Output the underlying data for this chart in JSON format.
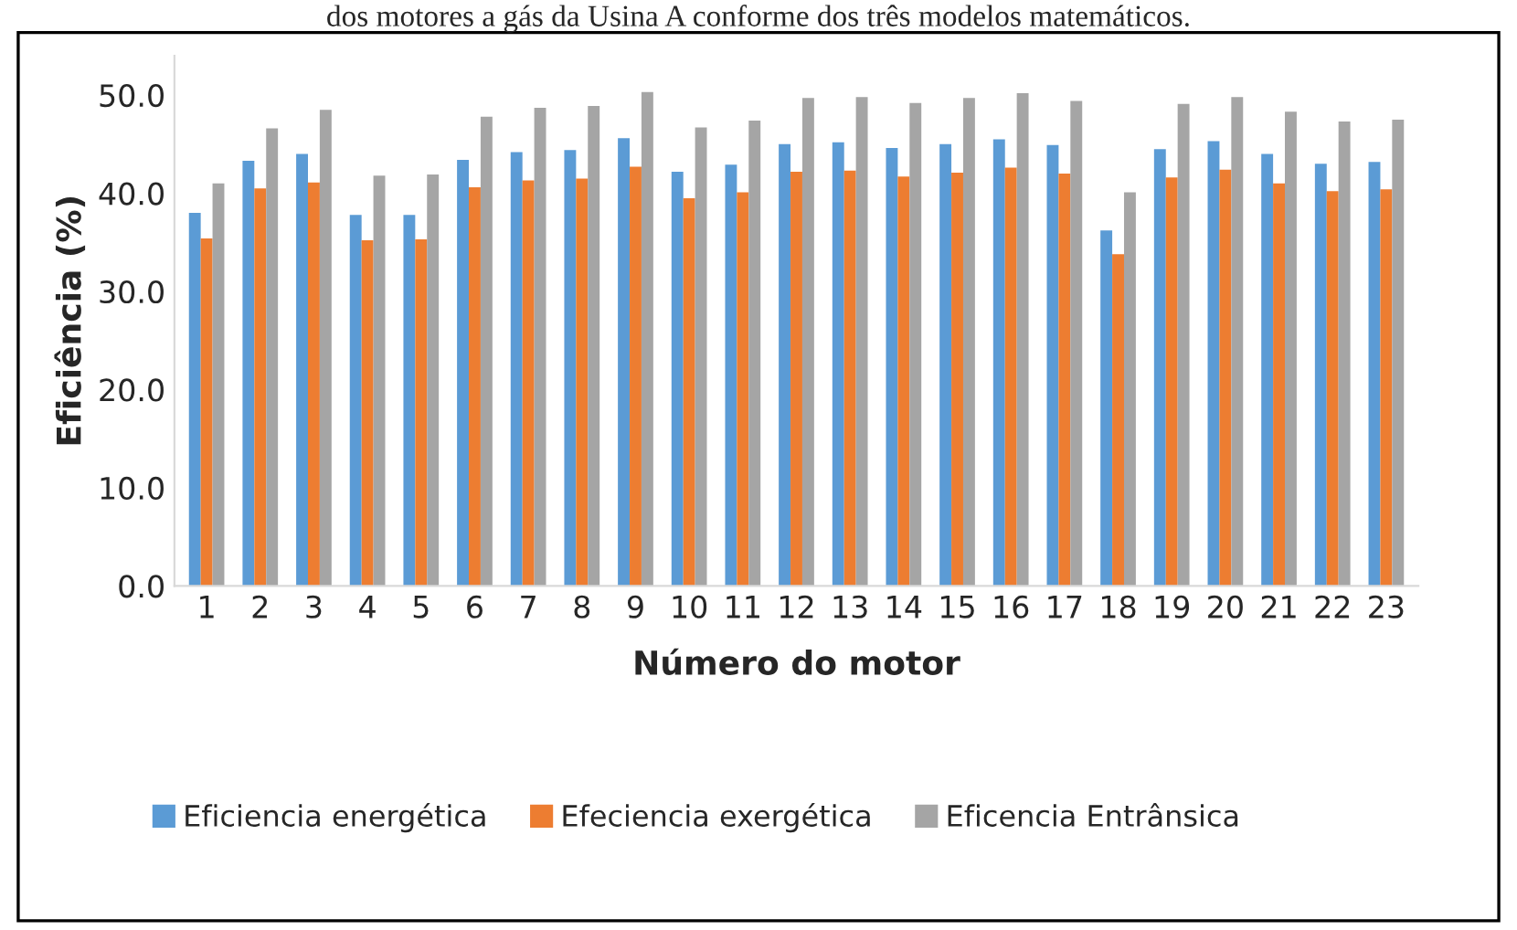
{
  "chart_data": {
    "type": "bar",
    "xlabel": "Número do motor",
    "ylabel": "Eficiência (%)",
    "annotations": [
      "dos motores a gás da Usina A conforme dos três modelos matemáticos."
    ],
    "categories": [
      "1",
      "2",
      "3",
      "4",
      "5",
      "6",
      "7",
      "8",
      "9",
      "10",
      "11",
      "12",
      "13",
      "14",
      "15",
      "16",
      "17",
      "18",
      "19",
      "20",
      "21",
      "22",
      "23"
    ],
    "series": [
      {
        "name": "Eficiencia energética",
        "color": "#5b9bd5",
        "values": [
          38.0,
          43.3,
          44.0,
          37.8,
          37.8,
          43.4,
          44.2,
          44.4,
          45.6,
          42.2,
          42.9,
          45.0,
          45.2,
          44.6,
          45.0,
          45.5,
          44.9,
          36.2,
          44.5,
          45.3,
          44.0,
          43.0,
          43.2
        ]
      },
      {
        "name": "Efeciencia exergética",
        "color": "#ed7d31",
        "values": [
          35.4,
          40.5,
          41.1,
          35.2,
          35.3,
          40.6,
          41.3,
          41.5,
          42.7,
          39.5,
          40.1,
          42.2,
          42.3,
          41.7,
          42.1,
          42.6,
          42.0,
          33.8,
          41.6,
          42.4,
          41.0,
          40.2,
          40.4
        ]
      },
      {
        "name": "Eficencia Entrânsica",
        "color": "#a5a5a5",
        "values": [
          41.0,
          46.6,
          48.5,
          41.8,
          41.9,
          47.8,
          48.7,
          48.9,
          50.3,
          46.7,
          47.4,
          49.7,
          49.8,
          49.2,
          49.7,
          50.2,
          49.4,
          40.1,
          49.1,
          49.8,
          48.3,
          47.3,
          47.5
        ]
      }
    ],
    "ylim": [
      0,
      54
    ],
    "yticks": [
      {
        "value": 0,
        "label": "0.0"
      },
      {
        "value": 10,
        "label": "10.0"
      },
      {
        "value": 20,
        "label": "20.0"
      },
      {
        "value": 30,
        "label": "30.0"
      },
      {
        "value": 40,
        "label": "40.0"
      },
      {
        "value": 50,
        "label": "50.0"
      }
    ],
    "grid": false,
    "legend": "bottom"
  }
}
